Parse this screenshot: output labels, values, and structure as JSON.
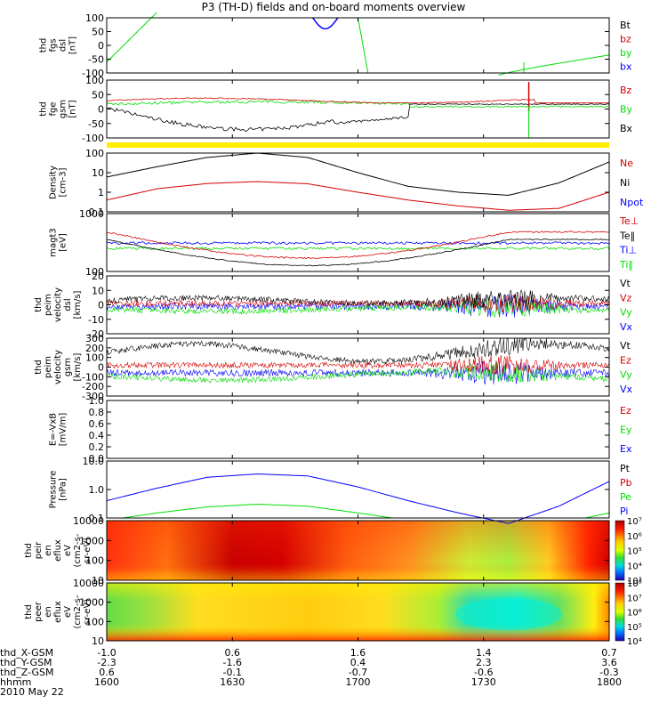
{
  "title": "P3 (TH-D) fields and on-board moments overview",
  "date": "2010 May 22",
  "colors": {
    "black": "#000000",
    "red": "#d40000",
    "green": "#00dd00",
    "blue": "#0000ff",
    "yellow": "#ffee00"
  },
  "chart_data": {
    "type": "line",
    "x_ticks": [
      "1600",
      "1630",
      "1700",
      "1730",
      "1800"
    ],
    "panels": [
      {
        "id": "fgs-dsl",
        "ylabel": [
          "thd",
          "fgs",
          "dsl",
          "[nT]"
        ],
        "yticks": [
          "100",
          "50",
          "0",
          "-50",
          "-100"
        ],
        "ylim": [
          -100,
          100
        ],
        "legend": [
          {
            "text": "Bt",
            "color": "black"
          },
          {
            "text": "bz",
            "color": "red"
          },
          {
            "text": "by",
            "color": "green"
          },
          {
            "text": "bx",
            "color": "blue"
          }
        ]
      },
      {
        "id": "fge-gsm",
        "ylabel": [
          "thd",
          "fge",
          "gsm",
          "[nT]"
        ],
        "yticks": [
          "100",
          "50",
          "0",
          "-50",
          "-100"
        ],
        "ylim": [
          -120,
          120
        ],
        "legend": [
          {
            "text": "Bz",
            "color": "red"
          },
          {
            "text": "By",
            "color": "green"
          },
          {
            "text": "Bx",
            "color": "black"
          }
        ]
      },
      {
        "id": "density",
        "ylabel": [
          "Density",
          "[cm-3]"
        ],
        "yticks": [
          "100",
          "10",
          "1",
          "0.1"
        ],
        "log": true,
        "ylim": [
          0.1,
          100
        ],
        "legend": [
          {
            "text": "Ne",
            "color": "red"
          },
          {
            "text": "Ni",
            "color": "black"
          },
          {
            "text": "Npot",
            "color": "blue"
          }
        ]
      },
      {
        "id": "temperature",
        "ylabel": [
          "magt3",
          "[eV]"
        ],
        "yticks": [
          "1000",
          "100"
        ],
        "log": true,
        "ylim": [
          100,
          1000
        ],
        "legend": [
          {
            "text": "Te⊥",
            "color": "red"
          },
          {
            "text": "Te‖",
            "color": "black"
          },
          {
            "text": "Ti⊥",
            "color": "blue"
          },
          {
            "text": "Ti‖",
            "color": "green"
          }
        ]
      },
      {
        "id": "peim-velocity-dsl",
        "ylabel": [
          "thd",
          "peim",
          "velocity",
          "dsl",
          "[km/s]"
        ],
        "yticks": [
          "20",
          "10",
          "0",
          "-10",
          "-20"
        ],
        "ylim": [
          -20,
          20
        ],
        "legend": [
          {
            "text": "Vt",
            "color": "black"
          },
          {
            "text": "Vz",
            "color": "red"
          },
          {
            "text": "Vy",
            "color": "green"
          },
          {
            "text": "Vx",
            "color": "blue"
          }
        ]
      },
      {
        "id": "peim-velocity-gsm",
        "ylabel": [
          "thd",
          "peim",
          "velocity",
          "gsm",
          "[km/s]"
        ],
        "yticks": [
          "300",
          "200",
          "100",
          "0",
          "-100",
          "-200",
          "-300"
        ],
        "ylim": [
          -300,
          300
        ],
        "legend": [
          {
            "text": "Vt",
            "color": "black"
          },
          {
            "text": "Ez",
            "color": "red"
          },
          {
            "text": "Vy",
            "color": "green"
          },
          {
            "text": "Vx",
            "color": "blue"
          }
        ]
      },
      {
        "id": "e-vxb",
        "ylabel": [
          "E=-VxB",
          "[mV/m]"
        ],
        "yticks": [
          "1.0",
          "0.8",
          "0.6",
          "0.4",
          "0.2",
          "0.0"
        ],
        "ylim": [
          0,
          1
        ],
        "legend": [
          {
            "text": "Ez",
            "color": "red"
          },
          {
            "text": "Ey",
            "color": "green"
          },
          {
            "text": "Ex",
            "color": "blue"
          }
        ]
      },
      {
        "id": "pressure",
        "ylabel": [
          "Pressure",
          "[nPa]"
        ],
        "yticks": [
          "10.0",
          "1.0",
          "0.1"
        ],
        "log": true,
        "ylim": [
          0.05,
          10
        ],
        "legend": [
          {
            "text": "Pt",
            "color": "black"
          },
          {
            "text": "Pb",
            "color": "red"
          },
          {
            "text": "Pe",
            "color": "green"
          },
          {
            "text": "Pi",
            "color": "blue"
          }
        ]
      },
      {
        "id": "ion-spectrogram",
        "ylabel": [
          "thd",
          "peir",
          "en",
          "eflux",
          "eV",
          "(cm2-s-",
          "sr-eV)"
        ],
        "yticks": [
          "10000",
          "1000",
          "100",
          "10"
        ],
        "colorbar": [
          "10⁷",
          "10⁶",
          "10⁵",
          "10⁴",
          "10³"
        ]
      },
      {
        "id": "electron-spectrogram",
        "ylabel": [
          "thd",
          "peer",
          "en",
          "eflux",
          "eV",
          "(cm2-s-",
          "sr-eV)"
        ],
        "yticks": [
          "10000",
          "1000",
          "100",
          "10"
        ],
        "colorbar": [
          "10⁸",
          "10⁷",
          "10⁶",
          "10⁵",
          "10⁴"
        ]
      }
    ],
    "series_profiles": {
      "density_ni": [
        6,
        20,
        60,
        100,
        60,
        10,
        2,
        1,
        0.7,
        3,
        35
      ],
      "density_ne": [
        0.4,
        1.5,
        2.8,
        3.5,
        2.7,
        1,
        0.4,
        0.2,
        0.12,
        0.15,
        1
      ],
      "pressure_pi": [
        0.25,
        0.8,
        2.2,
        3.0,
        2.5,
        0.9,
        0.25,
        0.08,
        0.03,
        0.15,
        1.5
      ],
      "pressure_pe": [
        0.04,
        0.08,
        0.14,
        0.18,
        0.15,
        0.08,
        0.04,
        0.02,
        0.015,
        0.03,
        0.08
      ]
    },
    "ephemeris": {
      "labels": [
        "thd_X-GSM",
        "thd_Y-GSM",
        "thd_Z-GSM",
        "hhmm"
      ],
      "rows": [
        [
          "-1.0",
          "0.6",
          "1.6",
          "1.4",
          "0.7"
        ],
        [
          "-2.3",
          "-1.6",
          "0.4",
          "2.3",
          "3.6"
        ],
        [
          "0.6",
          "-0.1",
          "-0.7",
          "-0.6",
          "-0.3"
        ],
        [
          "1600",
          "1630",
          "1700",
          "1730",
          "1800"
        ]
      ]
    }
  }
}
